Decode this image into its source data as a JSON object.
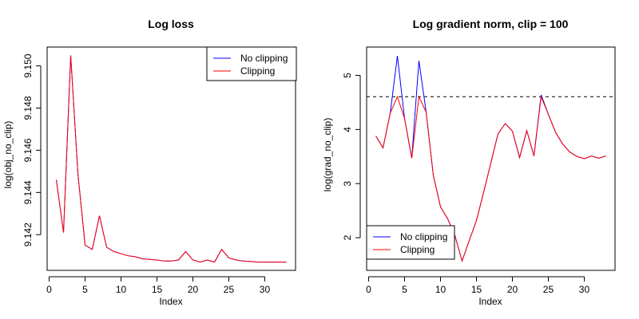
{
  "chart_data": [
    {
      "type": "line",
      "title": "Log loss",
      "xlabel": "Index",
      "ylabel": "log(obj_no_clip)",
      "xlim": [
        1,
        33
      ],
      "ylim": [
        9.1407,
        9.1505
      ],
      "x_ticks": [
        0,
        5,
        10,
        15,
        20,
        25,
        30
      ],
      "y_ticks": [
        9.142,
        9.144,
        9.146,
        9.148,
        9.15
      ],
      "y_tick_labels": [
        "9.142",
        "9.144",
        "9.146",
        "9.148",
        "9.150"
      ],
      "legend_position": "top-right",
      "grid": false,
      "x": [
        1,
        2,
        3,
        4,
        5,
        6,
        7,
        8,
        9,
        10,
        11,
        12,
        13,
        14,
        15,
        16,
        17,
        18,
        19,
        20,
        21,
        22,
        23,
        24,
        25,
        26,
        27,
        28,
        29,
        30,
        31,
        32,
        33
      ],
      "series": [
        {
          "name": "No clipping",
          "color": "#0000ff",
          "values": [
            9.1446,
            9.1421,
            9.1505,
            9.1449,
            9.1415,
            9.1413,
            9.1429,
            9.1414,
            9.1412,
            9.1411,
            9.141,
            9.14095,
            9.14085,
            9.14083,
            9.1408,
            9.14075,
            9.14075,
            9.1408,
            9.1412,
            9.1408,
            9.1407,
            9.1408,
            9.1407,
            9.1413,
            9.1409,
            9.1408,
            9.14075,
            9.14073,
            9.1407,
            9.1407,
            9.1407,
            9.1407,
            9.1407
          ]
        },
        {
          "name": "Clipping",
          "color": "#ff0000",
          "values": [
            9.1446,
            9.1421,
            9.1505,
            9.1449,
            9.1415,
            9.1413,
            9.1429,
            9.1414,
            9.1412,
            9.1411,
            9.141,
            9.14095,
            9.14085,
            9.14083,
            9.1408,
            9.14075,
            9.14075,
            9.1408,
            9.1412,
            9.1408,
            9.1407,
            9.1408,
            9.1407,
            9.1413,
            9.1409,
            9.1408,
            9.14075,
            9.14073,
            9.1407,
            9.1407,
            9.1407,
            9.1407,
            9.1407
          ]
        }
      ]
    },
    {
      "type": "line",
      "title": "Log gradient norm, clip = 100",
      "xlabel": "Index",
      "ylabel": "log(grad_no_clip)",
      "xlim": [
        1,
        33
      ],
      "ylim": [
        1.55,
        5.37
      ],
      "x_ticks": [
        0,
        5,
        10,
        15,
        20,
        25,
        30
      ],
      "y_ticks": [
        2,
        3,
        4,
        5
      ],
      "y_tick_labels": [
        "2",
        "3",
        "4",
        "5"
      ],
      "hline": {
        "value": 4.605,
        "color": "#000000",
        "style": "dashed"
      },
      "legend_position": "bottom-left",
      "grid": false,
      "x": [
        1,
        2,
        3,
        4,
        5,
        6,
        7,
        8,
        9,
        10,
        11,
        12,
        13,
        14,
        15,
        16,
        17,
        18,
        19,
        20,
        21,
        22,
        23,
        24,
        25,
        26,
        27,
        28,
        29,
        30,
        31,
        32,
        33
      ],
      "series": [
        {
          "name": "No clipping",
          "color": "#0000ff",
          "values": [
            3.88,
            3.66,
            4.3,
            5.36,
            4.2,
            3.47,
            5.27,
            4.32,
            3.15,
            2.57,
            2.35,
            2.04,
            1.57,
            1.95,
            2.32,
            2.84,
            3.38,
            3.92,
            4.11,
            3.97,
            3.48,
            3.98,
            3.51,
            4.64,
            4.28,
            3.95,
            3.73,
            3.58,
            3.5,
            3.46,
            3.51,
            3.47,
            3.51
          ]
        },
        {
          "name": "Clipping",
          "color": "#ff0000",
          "values": [
            3.88,
            3.66,
            4.3,
            4.605,
            4.2,
            3.47,
            4.605,
            4.32,
            3.15,
            2.57,
            2.35,
            2.04,
            1.57,
            1.95,
            2.32,
            2.84,
            3.38,
            3.92,
            4.11,
            3.97,
            3.48,
            3.98,
            3.51,
            4.605,
            4.28,
            3.95,
            3.73,
            3.58,
            3.5,
            3.46,
            3.51,
            3.47,
            3.51
          ]
        }
      ]
    }
  ]
}
